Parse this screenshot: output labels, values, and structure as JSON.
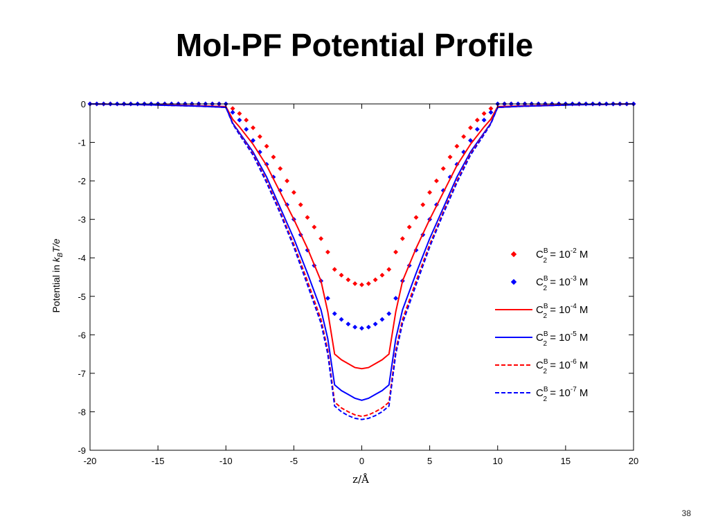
{
  "slide": {
    "title": "MoI-PF Potential Profile",
    "page_number": "38"
  },
  "chart_data": {
    "type": "line",
    "xlabel": "z/Å",
    "ylabel_parts": {
      "prefix": "Potential in ",
      "k": "k",
      "B": "B",
      "suffix": "T/e"
    },
    "xlim": [
      -20,
      20
    ],
    "ylim": [
      -9,
      0
    ],
    "xticks": [
      -20,
      -15,
      -10,
      -5,
      0,
      5,
      10,
      15,
      20
    ],
    "yticks": [
      0,
      -1,
      -2,
      -3,
      -4,
      -5,
      -6,
      -7,
      -8,
      -9
    ],
    "grid": false,
    "legend_position": "right",
    "series": [
      {
        "name": "C2B = 10^-2 M",
        "legend": {
          "base": "C",
          "sup": "B",
          "sub": "2",
          "eq": " = 10",
          "exp": "-2",
          "unit": " M"
        },
        "color": "#ff0000",
        "style": "markers",
        "marker": "diamond",
        "x": [
          -20,
          -19.5,
          -19,
          -18.5,
          -18,
          -17.5,
          -17,
          -16.5,
          -16,
          -15.5,
          -15,
          -14.5,
          -14,
          -13.5,
          -13,
          -12.5,
          -12,
          -11.5,
          -11,
          -10.5,
          -10,
          -9.5,
          -9,
          -8.5,
          -8,
          -7.5,
          -7,
          -6.5,
          -6,
          -5.5,
          -5,
          -4.5,
          -4,
          -3.5,
          -3,
          -2.5,
          -2,
          -1.5,
          -1,
          -0.5,
          0,
          0.5,
          1,
          1.5,
          2,
          2.5,
          3,
          3.5,
          4,
          4.5,
          5,
          5.5,
          6,
          6.5,
          7,
          7.5,
          8,
          8.5,
          9,
          9.5,
          10,
          10.5,
          11,
          11.5,
          12,
          12.5,
          13,
          13.5,
          14,
          14.5,
          15,
          15.5,
          16,
          16.5,
          17,
          17.5,
          18,
          18.5,
          19,
          19.5,
          20
        ],
        "y": [
          0,
          0,
          0,
          0,
          0,
          0,
          0,
          0,
          0,
          0,
          0,
          0,
          0,
          0,
          0,
          0,
          0,
          0,
          0,
          0,
          0,
          -0.12,
          -0.25,
          -0.42,
          -0.62,
          -0.85,
          -1.1,
          -1.38,
          -1.68,
          -2.0,
          -2.3,
          -2.62,
          -2.95,
          -3.2,
          -3.5,
          -3.85,
          -4.3,
          -4.45,
          -4.57,
          -4.67,
          -4.7,
          -4.67,
          -4.57,
          -4.45,
          -4.3,
          -3.85,
          -3.5,
          -3.2,
          -2.95,
          -2.62,
          -2.3,
          -2.0,
          -1.68,
          -1.38,
          -1.1,
          -0.85,
          -0.62,
          -0.42,
          -0.25,
          -0.12,
          0,
          0,
          0,
          0,
          0,
          0,
          0,
          0,
          0,
          0,
          0,
          0,
          0,
          0,
          0,
          0,
          0,
          0,
          0,
          0,
          0
        ]
      },
      {
        "name": "C2B = 10^-3 M",
        "legend": {
          "base": "C",
          "sup": "B",
          "sub": "2",
          "eq": " = 10",
          "exp": "-3",
          "unit": " M"
        },
        "color": "#0000ff",
        "style": "markers",
        "marker": "diamond",
        "x": [
          -20,
          -19.5,
          -19,
          -18.5,
          -18,
          -17.5,
          -17,
          -16.5,
          -16,
          -15.5,
          -15,
          -14.5,
          -14,
          -13.5,
          -13,
          -12.5,
          -12,
          -11.5,
          -11,
          -10.5,
          -10,
          -9.5,
          -9,
          -8.5,
          -8,
          -7.5,
          -7,
          -6.5,
          -6,
          -5.5,
          -5,
          -4.5,
          -4,
          -3.5,
          -3,
          -2.5,
          -2,
          -1.5,
          -1,
          -0.5,
          0,
          0.5,
          1,
          1.5,
          2,
          2.5,
          3,
          3.5,
          4,
          4.5,
          5,
          5.5,
          6,
          6.5,
          7,
          7.5,
          8,
          8.5,
          9,
          9.5,
          10,
          10.5,
          11,
          11.5,
          12,
          12.5,
          13,
          13.5,
          14,
          14.5,
          15,
          15.5,
          16,
          16.5,
          17,
          17.5,
          18,
          18.5,
          19,
          19.5,
          20
        ],
        "y": [
          0,
          0,
          0,
          0,
          0,
          0,
          0,
          0,
          0,
          0,
          0,
          0,
          0,
          0,
          0,
          0,
          0,
          0,
          0,
          0,
          0,
          -0.22,
          -0.42,
          -0.66,
          -0.95,
          -1.25,
          -1.57,
          -1.9,
          -2.25,
          -2.62,
          -3.0,
          -3.4,
          -3.8,
          -4.2,
          -4.6,
          -5.05,
          -5.45,
          -5.6,
          -5.72,
          -5.8,
          -5.83,
          -5.8,
          -5.72,
          -5.6,
          -5.45,
          -5.05,
          -4.6,
          -4.2,
          -3.8,
          -3.4,
          -3.0,
          -2.62,
          -2.25,
          -1.9,
          -1.57,
          -1.25,
          -0.95,
          -0.66,
          -0.42,
          -0.22,
          0,
          0,
          0,
          0,
          0,
          0,
          0,
          0,
          0,
          0,
          0,
          0,
          0,
          0,
          0,
          0,
          0,
          0,
          0,
          0,
          0
        ]
      },
      {
        "name": "C2B = 10^-4 M",
        "legend": {
          "base": "C",
          "sup": "B",
          "sub": "2",
          "eq": " = 10",
          "exp": "-4",
          "unit": " M"
        },
        "color": "#ff0000",
        "style": "solid",
        "x": [
          -20,
          -18,
          -16,
          -14,
          -12,
          -10,
          -9.5,
          -9,
          -8,
          -7,
          -6,
          -5,
          -4,
          -3,
          -2.5,
          -2,
          -1.5,
          -1,
          -0.5,
          0,
          0.5,
          1,
          1.5,
          2,
          2.5,
          3,
          4,
          5,
          6,
          7,
          8,
          9,
          9.5,
          10,
          12,
          14,
          16,
          18,
          20
        ],
        "y": [
          0,
          -0.01,
          -0.02,
          -0.03,
          -0.05,
          -0.07,
          -0.4,
          -0.6,
          -1.05,
          -1.6,
          -2.3,
          -3.0,
          -3.75,
          -4.6,
          -5.4,
          -6.5,
          -6.65,
          -6.75,
          -6.85,
          -6.88,
          -6.85,
          -6.75,
          -6.65,
          -6.5,
          -5.4,
          -4.6,
          -3.75,
          -3.0,
          -2.3,
          -1.6,
          -1.05,
          -0.6,
          -0.4,
          -0.07,
          -0.05,
          -0.03,
          -0.02,
          -0.01,
          0
        ]
      },
      {
        "name": "C2B = 10^-5 M",
        "legend": {
          "base": "C",
          "sup": "B",
          "sub": "2",
          "eq": " = 10",
          "exp": "-5",
          "unit": " M"
        },
        "color": "#0000ff",
        "style": "solid",
        "x": [
          -20,
          -18,
          -16,
          -14,
          -12,
          -10,
          -9.5,
          -9,
          -8,
          -7,
          -6,
          -5,
          -4,
          -3,
          -2.5,
          -2,
          -1.5,
          -1,
          -0.5,
          0,
          0.5,
          1,
          1.5,
          2,
          2.5,
          3,
          4,
          5,
          6,
          7,
          8,
          9,
          9.5,
          10,
          12,
          14,
          16,
          18,
          20
        ],
        "y": [
          0,
          -0.01,
          -0.02,
          -0.04,
          -0.06,
          -0.09,
          -0.5,
          -0.75,
          -1.25,
          -1.9,
          -2.7,
          -3.5,
          -4.4,
          -5.35,
          -6.1,
          -7.3,
          -7.45,
          -7.55,
          -7.65,
          -7.7,
          -7.65,
          -7.55,
          -7.45,
          -7.3,
          -6.1,
          -5.35,
          -4.4,
          -3.5,
          -2.7,
          -1.9,
          -1.25,
          -0.75,
          -0.5,
          -0.09,
          -0.06,
          -0.04,
          -0.02,
          -0.01,
          0
        ]
      },
      {
        "name": "C2B = 10^-6 M",
        "legend": {
          "base": "C",
          "sup": "B",
          "sub": "2",
          "eq": " = 10",
          "exp": "-6",
          "unit": " M"
        },
        "color": "#ff0000",
        "style": "dashed",
        "x": [
          -20,
          -18,
          -16,
          -14,
          -12,
          -10,
          -9.5,
          -9,
          -8,
          -7,
          -6,
          -5,
          -4,
          -3,
          -2.5,
          -2,
          -1.5,
          -1,
          -0.5,
          0,
          0.5,
          1,
          1.5,
          2,
          2.5,
          3,
          4,
          5,
          6,
          7,
          8,
          9,
          9.5,
          10,
          12,
          14,
          16,
          18,
          20
        ],
        "y": [
          0,
          -0.01,
          -0.02,
          -0.04,
          -0.06,
          -0.09,
          -0.5,
          -0.78,
          -1.3,
          -2.0,
          -2.8,
          -3.65,
          -4.6,
          -5.6,
          -6.4,
          -7.75,
          -7.9,
          -8.0,
          -8.08,
          -8.12,
          -8.08,
          -8.0,
          -7.9,
          -7.75,
          -6.4,
          -5.6,
          -4.6,
          -3.65,
          -2.8,
          -2.0,
          -1.3,
          -0.78,
          -0.5,
          -0.09,
          -0.06,
          -0.04,
          -0.02,
          -0.01,
          0
        ]
      },
      {
        "name": "C2B = 10^-7 M",
        "legend": {
          "base": "C",
          "sup": "B",
          "sub": "2",
          "eq": " = 10",
          "exp": "-7",
          "unit": " M"
        },
        "color": "#0000ff",
        "style": "dashed",
        "x": [
          -20,
          -18,
          -16,
          -14,
          -12,
          -10,
          -9.5,
          -9,
          -8,
          -7,
          -6,
          -5,
          -4,
          -3,
          -2.5,
          -2,
          -1.5,
          -1,
          -0.5,
          0,
          0.5,
          1,
          1.5,
          2,
          2.5,
          3,
          4,
          5,
          6,
          7,
          8,
          9,
          9.5,
          10,
          12,
          14,
          16,
          18,
          20
        ],
        "y": [
          0,
          -0.01,
          -0.02,
          -0.04,
          -0.06,
          -0.09,
          -0.52,
          -0.8,
          -1.33,
          -2.05,
          -2.85,
          -3.72,
          -4.7,
          -5.7,
          -6.5,
          -7.85,
          -8.0,
          -8.1,
          -8.17,
          -8.2,
          -8.17,
          -8.1,
          -8.0,
          -7.85,
          -6.5,
          -5.7,
          -4.7,
          -3.72,
          -2.85,
          -2.05,
          -1.33,
          -0.8,
          -0.52,
          -0.09,
          -0.06,
          -0.04,
          -0.02,
          -0.01,
          0
        ]
      }
    ]
  }
}
